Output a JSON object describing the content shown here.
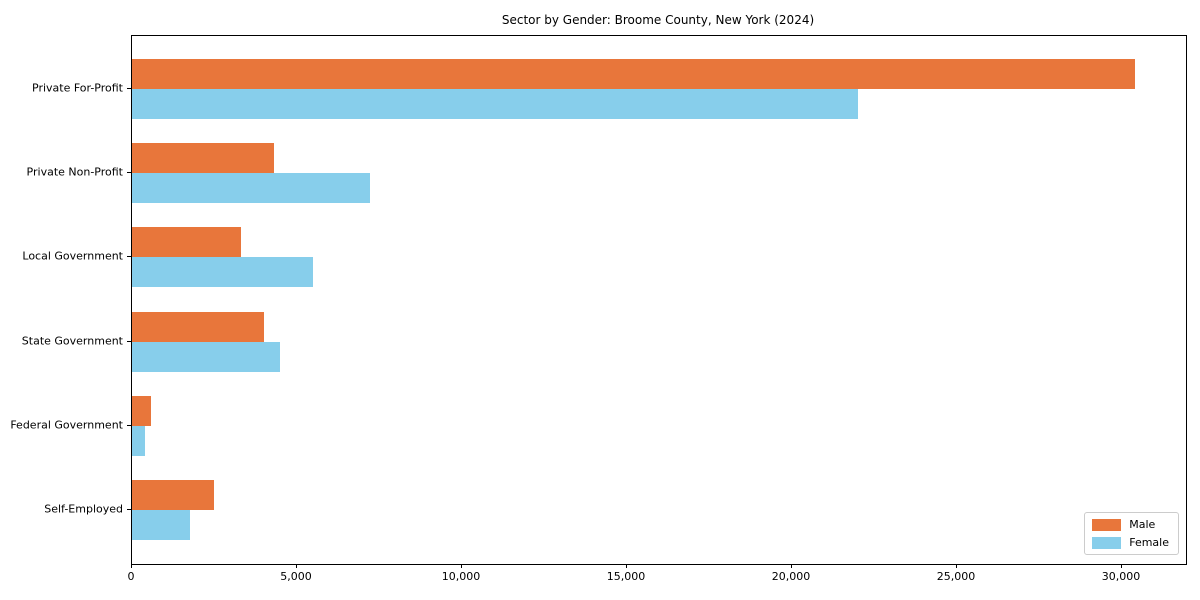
{
  "chart_data": {
    "type": "bar",
    "orientation": "horizontal",
    "title": "Sector by Gender: Broome County, New York (2024)",
    "categories": [
      "Private For-Profit",
      "Private Non-Profit",
      "Local Government",
      "State Government",
      "Federal Government",
      "Self-Employed"
    ],
    "series": [
      {
        "name": "Male",
        "color": "#E8763B",
        "values": [
          30400,
          4300,
          3300,
          4000,
          570,
          2500
        ]
      },
      {
        "name": "Female",
        "color": "#87CEEB",
        "values": [
          22000,
          7200,
          5500,
          4500,
          400,
          1760
        ]
      }
    ],
    "xlabel": "",
    "ylabel": "",
    "xlim": [
      0,
      31940
    ],
    "x_ticks": [
      {
        "value": 0,
        "label": "0"
      },
      {
        "value": 5000,
        "label": "5,000"
      },
      {
        "value": 10000,
        "label": "10,000"
      },
      {
        "value": 15000,
        "label": "15,000"
      },
      {
        "value": 20000,
        "label": "20,000"
      },
      {
        "value": 25000,
        "label": "25,000"
      },
      {
        "value": 30000,
        "label": "30,000"
      }
    ],
    "grid": false,
    "legend_position": "lower right"
  }
}
